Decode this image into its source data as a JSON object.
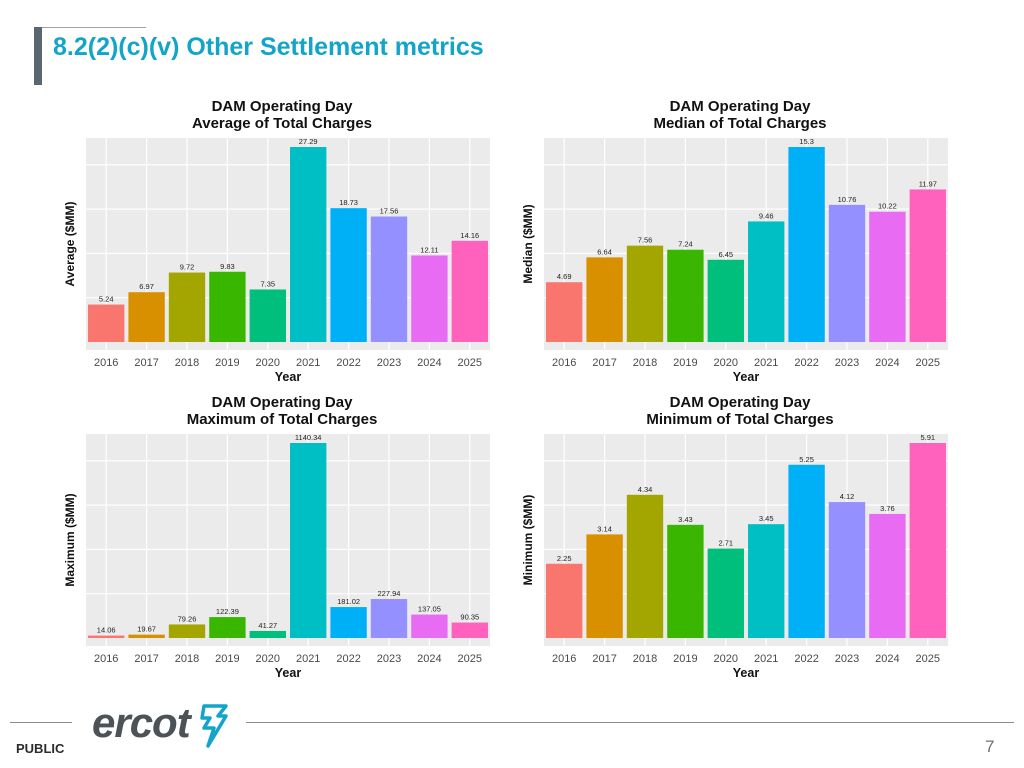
{
  "slide": {
    "title": "8.2(2)(c)(v) Other Settlement metrics",
    "footer_label": "PUBLIC",
    "page_number": "7",
    "logo_text": "ercot"
  },
  "chart_data": [
    {
      "type": "bar",
      "title": [
        "DAM Operating Day",
        "Average of Total Charges"
      ],
      "xlabel": "Year",
      "ylabel": "Average ($MM)",
      "categories": [
        "2016",
        "2017",
        "2018",
        "2019",
        "2020",
        "2021",
        "2022",
        "2023",
        "2024",
        "2025"
      ],
      "values": [
        5.24,
        6.97,
        9.72,
        9.83,
        7.35,
        27.29,
        18.73,
        17.56,
        12.11,
        14.16
      ],
      "labels": [
        "5.24",
        "6.97",
        "9.72",
        "9.83",
        "7.35",
        "27.29",
        "18.73",
        "17.56",
        "12.11",
        "14.16"
      ],
      "ylim": [
        0,
        27.29
      ],
      "grid": true
    },
    {
      "type": "bar",
      "title": [
        "DAM Operating Day",
        "Median of Total Charges"
      ],
      "xlabel": "Year",
      "ylabel": "Median ($MM)",
      "categories": [
        "2016",
        "2017",
        "2018",
        "2019",
        "2020",
        "2021",
        "2022",
        "2023",
        "2024",
        "2025"
      ],
      "values": [
        4.69,
        6.64,
        7.56,
        7.24,
        6.45,
        9.46,
        15.3,
        10.76,
        10.22,
        11.97
      ],
      "labels": [
        "4.69",
        "6.64",
        "7.56",
        "7.24",
        "6.45",
        "9.46",
        "15.3",
        "10.76",
        "10.22",
        "11.97"
      ],
      "ylim": [
        0,
        15.3
      ],
      "grid": true
    },
    {
      "type": "bar",
      "title": [
        "DAM Operating Day",
        "Maximum of Total Charges"
      ],
      "xlabel": "Year",
      "ylabel": "Maximum ($MM)",
      "categories": [
        "2016",
        "2017",
        "2018",
        "2019",
        "2020",
        "2021",
        "2022",
        "2023",
        "2024",
        "2025"
      ],
      "values": [
        14.06,
        19.67,
        79.26,
        122.39,
        41.27,
        1140.34,
        181.02,
        227.94,
        137.05,
        90.35
      ],
      "labels": [
        "14.06",
        "19.67",
        "79.26",
        "122.39",
        "41.27",
        "1140.34",
        "181.02",
        "227.94",
        "137.05",
        "90.35"
      ],
      "ylim": [
        0,
        1140.34
      ],
      "grid": true
    },
    {
      "type": "bar",
      "title": [
        "DAM Operating Day",
        "Minimum of Total Charges"
      ],
      "xlabel": "Year",
      "ylabel": "Minimum ($MM)",
      "categories": [
        "2016",
        "2017",
        "2018",
        "2019",
        "2020",
        "2021",
        "2022",
        "2023",
        "2024",
        "2025"
      ],
      "values": [
        2.25,
        3.14,
        4.34,
        3.43,
        2.71,
        3.45,
        5.25,
        4.12,
        3.76,
        5.91
      ],
      "labels": [
        "2.25",
        "3.14",
        "4.34",
        "3.43",
        "2.71",
        "3.45",
        "5.25",
        "4.12",
        "3.76",
        "5.91"
      ],
      "ylim": [
        0,
        5.91
      ],
      "grid": true
    }
  ],
  "colors": {
    "title": "#12a5c9",
    "panel": "#ebebeb",
    "grid": "#ffffff",
    "bars": [
      "#f8766d",
      "#d89000",
      "#a3a500",
      "#39b600",
      "#00bf7d",
      "#00bfc4",
      "#00b0f6",
      "#9590ff",
      "#e76bf3",
      "#ff62bc"
    ]
  }
}
